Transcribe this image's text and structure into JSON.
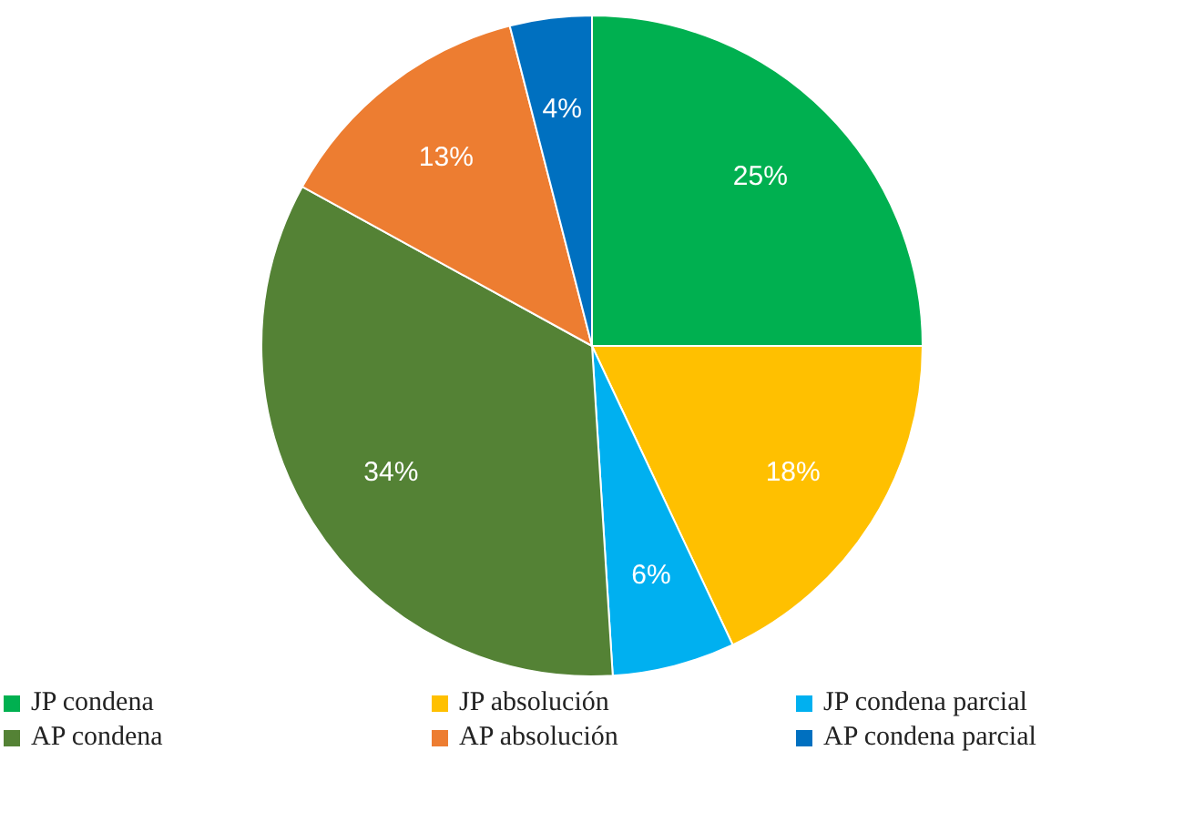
{
  "chart_data": {
    "type": "pie",
    "categories": [
      "JP condena",
      "JP absolución",
      "JP condena parcial",
      "AP condena",
      "AP absolución",
      "AP condena parcial"
    ],
    "values": [
      25,
      18,
      6,
      34,
      13,
      4
    ],
    "colors": [
      "#00b050",
      "#ffc000",
      "#00b0f0",
      "#548235",
      "#ed7d31",
      "#0070c0"
    ],
    "value_labels": [
      "25%",
      "18%",
      "6%",
      "34%",
      "13%",
      "4%"
    ],
    "legend": "bottom"
  }
}
